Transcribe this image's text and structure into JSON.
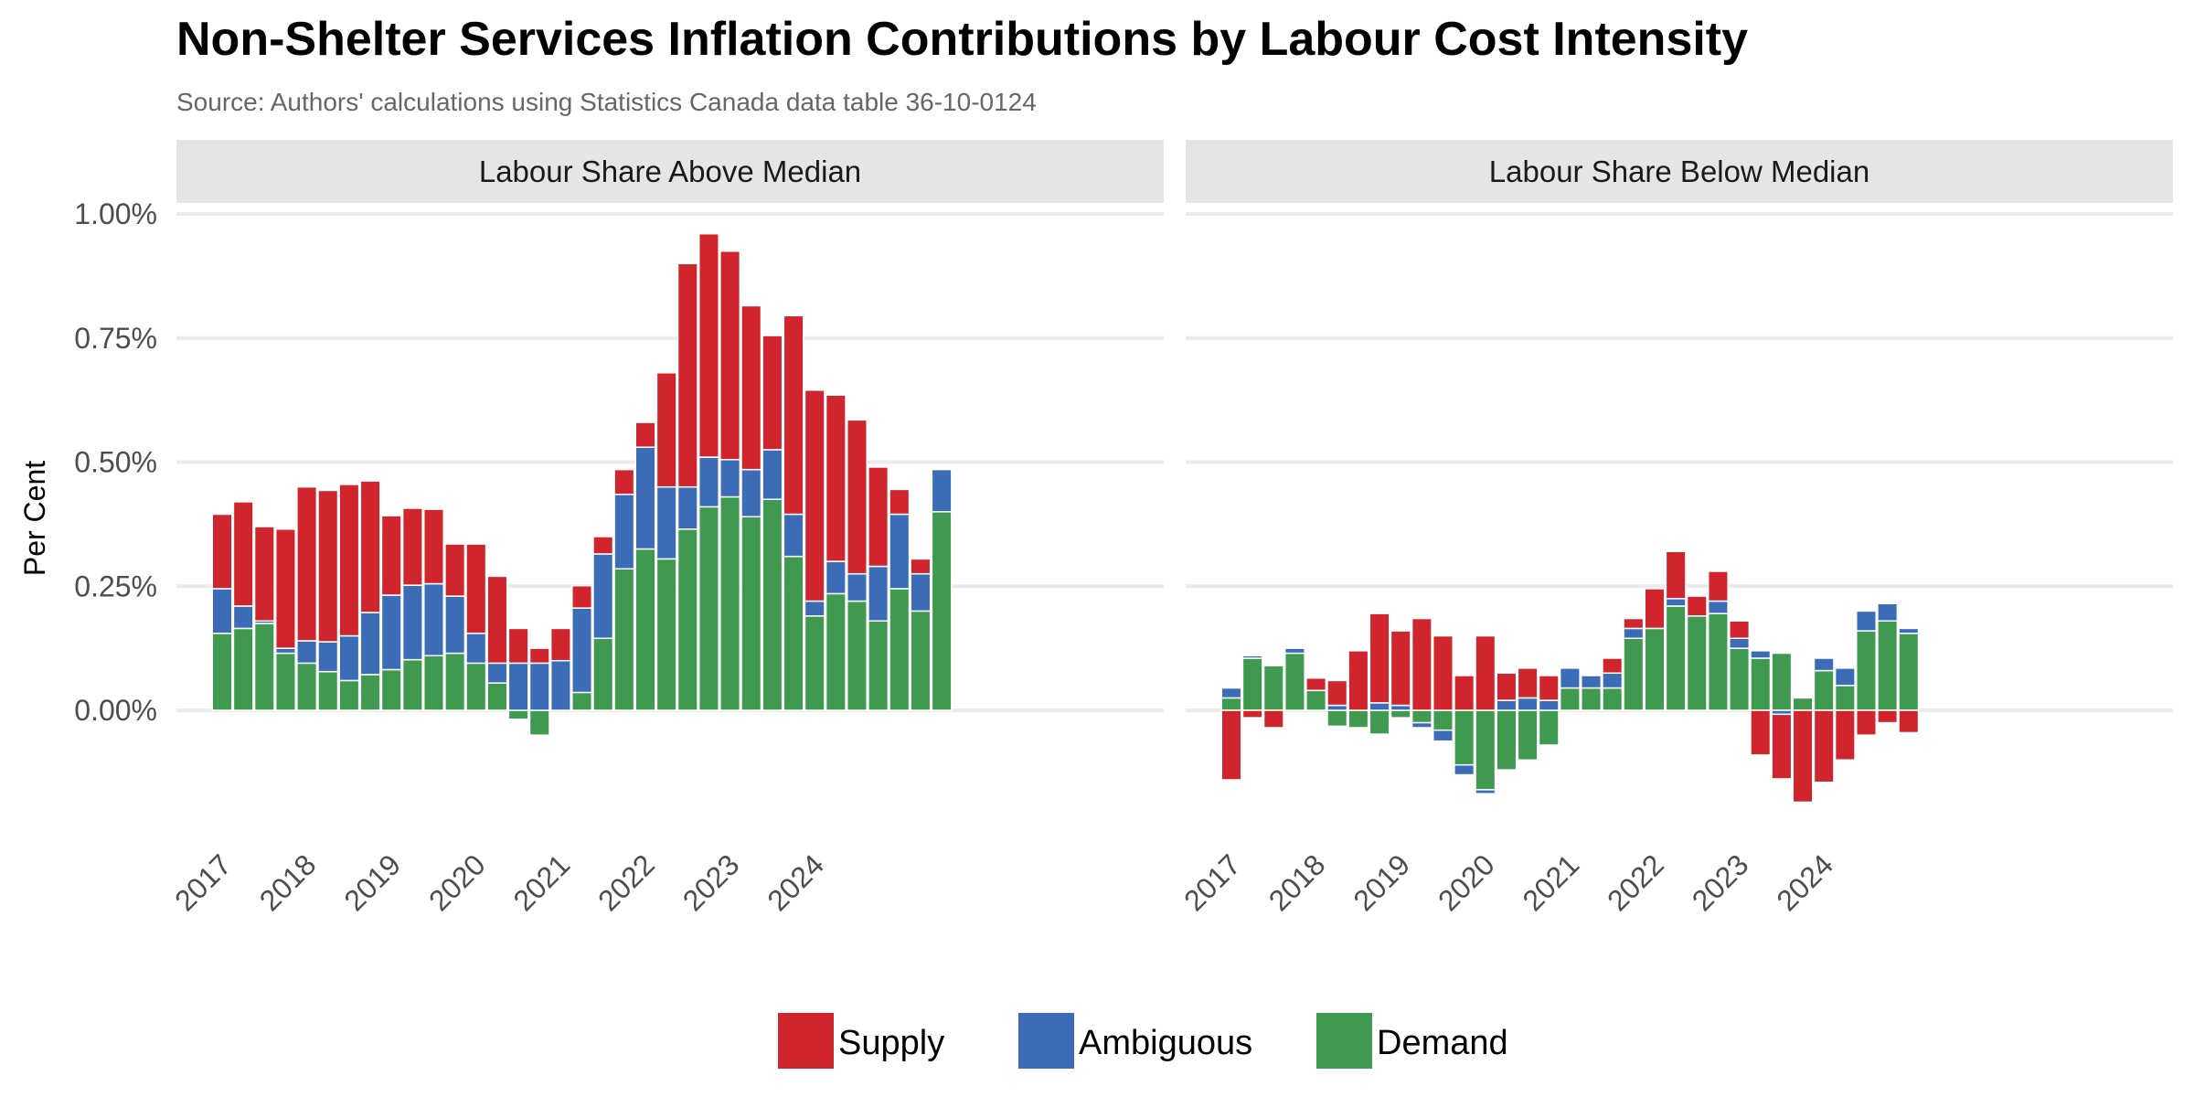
{
  "chart_data": {
    "type": "bar",
    "title": "Non-Shelter Services Inflation Contributions by Labour Cost Intensity",
    "subtitle": "Source: Authors' calculations using Statistics Canada data table 36-10-0124",
    "ylabel": "Per Cent",
    "ylim": [
      -0.2,
      1.0
    ],
    "y_ticks": [
      {
        "value": 0.0,
        "label": "0.00%"
      },
      {
        "value": 0.25,
        "label": "0.25%"
      },
      {
        "value": 0.5,
        "label": "0.50%"
      },
      {
        "value": 0.75,
        "label": "0.75%"
      },
      {
        "value": 1.0,
        "label": "1.00%"
      }
    ],
    "x_tick_labels": [
      "2017",
      "2018",
      "2019",
      "2020",
      "2021",
      "2022",
      "2023",
      "2024"
    ],
    "stacked": true,
    "grid": true,
    "legend_position": "bottom",
    "series_order": [
      "Supply",
      "Ambiguous",
      "Demand"
    ],
    "colors": {
      "Supply": "#d0252d",
      "Ambiguous": "#3b6cb5",
      "Demand": "#3f9a50"
    },
    "panels": [
      {
        "name": "Labour Share Above Median",
        "series": [
          {
            "name": "Demand",
            "values": [
              0.155,
              0.165,
              0.175,
              0.115,
              0.095,
              0.078,
              0.06,
              0.072,
              0.082,
              0.102,
              0.11,
              0.115,
              0.095,
              0.055,
              -0.018,
              -0.05,
              0.0,
              0.036,
              0.145,
              0.285,
              0.325,
              0.305,
              0.365,
              0.41,
              0.43,
              0.39,
              0.425,
              0.31,
              0.19,
              0.235,
              0.22,
              0.18,
              0.245,
              0.2,
              0.4
            ]
          },
          {
            "name": "Ambiguous",
            "values": [
              0.09,
              0.045,
              0.005,
              0.01,
              0.045,
              0.06,
              0.09,
              0.125,
              0.15,
              0.15,
              0.145,
              0.115,
              0.06,
              0.04,
              0.095,
              0.095,
              0.1,
              0.17,
              0.17,
              0.15,
              0.205,
              0.145,
              0.085,
              0.1,
              0.075,
              0.095,
              0.1,
              0.085,
              0.03,
              0.065,
              0.055,
              0.11,
              0.15,
              0.075,
              0.085
            ]
          },
          {
            "name": "Supply",
            "values": [
              0.15,
              0.21,
              0.19,
              0.24,
              0.31,
              0.305,
              0.305,
              0.265,
              0.16,
              0.155,
              0.15,
              0.105,
              0.18,
              0.175,
              0.07,
              0.03,
              0.065,
              0.045,
              0.035,
              0.05,
              0.05,
              0.23,
              0.45,
              0.45,
              0.42,
              0.33,
              0.23,
              0.4,
              0.425,
              0.335,
              0.31,
              0.2,
              0.05,
              0.03,
              0.0
            ]
          }
        ]
      },
      {
        "name": "Labour Share Below Median",
        "series": [
          {
            "name": "Demand",
            "values": [
              0.025,
              0.105,
              0.09,
              0.115,
              0.04,
              -0.032,
              -0.035,
              -0.048,
              -0.015,
              -0.025,
              -0.04,
              -0.11,
              -0.16,
              -0.12,
              -0.1,
              -0.07,
              0.045,
              0.045,
              0.045,
              0.145,
              0.165,
              0.21,
              0.19,
              0.195,
              0.125,
              0.105,
              0.115,
              0.025,
              0.08,
              0.05,
              0.16,
              0.18,
              0.155
            ]
          },
          {
            "name": "Ambiguous",
            "values": [
              0.02,
              0.005,
              0.0,
              0.01,
              0.0,
              0.01,
              0.0,
              0.015,
              0.01,
              -0.01,
              -0.022,
              -0.02,
              -0.008,
              0.02,
              0.025,
              0.02,
              0.04,
              0.025,
              0.03,
              0.02,
              0.0,
              0.015,
              0.0,
              0.025,
              0.02,
              0.015,
              -0.008,
              0.0,
              0.025,
              0.035,
              0.04,
              0.035,
              0.01
            ]
          },
          {
            "name": "Supply",
            "values": [
              -0.14,
              -0.015,
              -0.035,
              0.0,
              0.025,
              0.05,
              0.12,
              0.18,
              0.15,
              0.185,
              0.15,
              0.07,
              0.15,
              0.055,
              0.06,
              0.05,
              0.0,
              0.0,
              0.03,
              0.02,
              0.08,
              0.095,
              0.04,
              0.06,
              0.035,
              -0.09,
              -0.13,
              -0.185,
              -0.145,
              -0.1,
              -0.05,
              -0.025,
              -0.045
            ]
          }
        ]
      }
    ]
  },
  "legend": {
    "items": [
      {
        "label": "Supply",
        "color": "#d0252d"
      },
      {
        "label": "Ambiguous",
        "color": "#3b6cb5"
      },
      {
        "label": "Demand",
        "color": "#3f9a50"
      }
    ]
  }
}
